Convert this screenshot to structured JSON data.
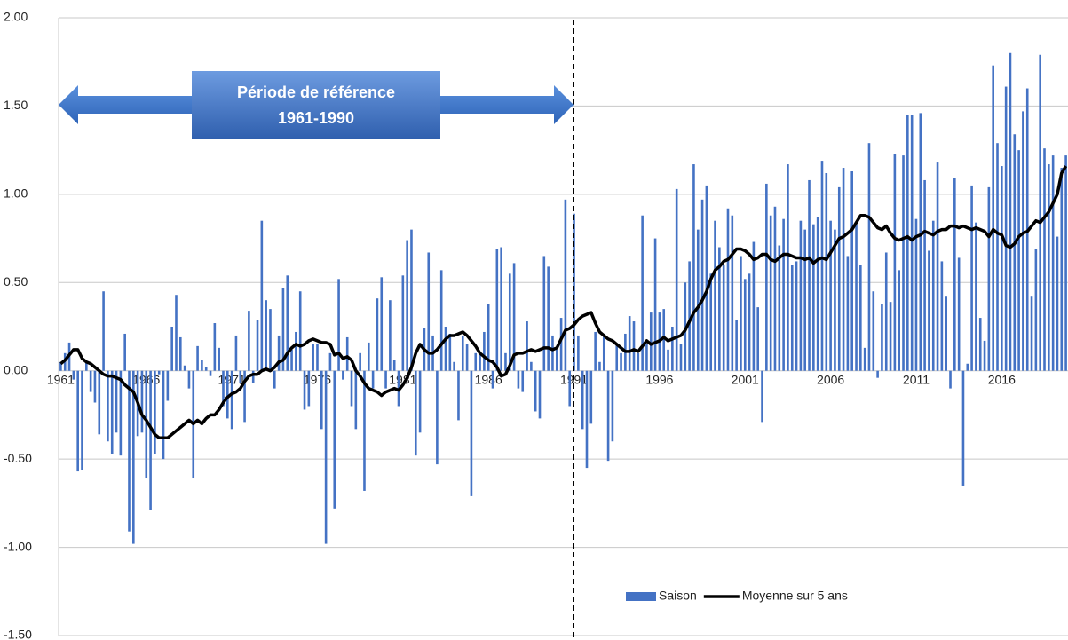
{
  "chart_data": {
    "type": "bar-line",
    "annotation": [
      "Période de référence",
      "1961-1990"
    ],
    "categories": [
      "1961",
      null,
      null,
      null,
      null,
      null,
      null,
      null,
      null,
      null,
      null,
      null,
      null,
      null,
      null,
      null,
      null,
      null,
      null,
      null,
      "1966",
      null,
      null,
      null,
      null,
      null,
      null,
      null,
      null,
      null,
      null,
      null,
      null,
      null,
      null,
      null,
      null,
      null,
      null,
      null,
      "1971",
      null,
      null,
      null,
      null,
      null,
      null,
      null,
      null,
      null,
      null,
      null,
      null,
      null,
      null,
      null,
      null,
      null,
      null,
      null,
      "1976",
      null,
      null,
      null,
      null,
      null,
      null,
      null,
      null,
      null,
      null,
      null,
      null,
      null,
      null,
      null,
      null,
      null,
      null,
      null,
      "1981",
      null,
      null,
      null,
      null,
      null,
      null,
      null,
      null,
      null,
      null,
      null,
      null,
      null,
      null,
      null,
      null,
      null,
      null,
      null,
      "1986",
      null,
      null,
      null,
      null,
      null,
      null,
      null,
      null,
      null,
      null,
      null,
      null,
      null,
      null,
      null,
      null,
      null,
      null,
      null,
      "1991",
      null,
      null,
      null,
      null,
      null,
      null,
      null,
      null,
      null,
      null,
      null,
      null,
      null,
      null,
      null,
      null,
      null,
      null,
      null,
      "1996",
      null,
      null,
      null,
      null,
      null,
      null,
      null,
      null,
      null,
      null,
      null,
      null,
      null,
      null,
      null,
      null,
      null,
      null,
      null,
      "2001",
      null,
      null,
      null,
      null,
      null,
      null,
      null,
      null,
      null,
      null,
      null,
      null,
      null,
      null,
      null,
      null,
      null,
      null,
      null,
      "2006",
      null,
      null,
      null,
      null,
      null,
      null,
      null,
      null,
      null,
      null,
      null,
      null,
      null,
      null,
      null,
      null,
      null,
      null,
      null,
      "2011",
      null,
      null,
      null,
      null,
      null,
      null,
      null,
      null,
      null,
      null,
      null,
      null,
      null,
      null,
      null,
      null,
      null,
      null,
      null,
      "2016",
      null,
      null,
      null,
      null,
      null,
      null,
      null,
      null,
      null,
      null,
      null,
      null,
      null,
      null,
      null
    ],
    "series": [
      {
        "name": "Saison",
        "type": "bar",
        "color": "#4472c4",
        "values": [
          0.05,
          0.1,
          0.16,
          -0.05,
          -0.57,
          -0.56,
          0.05,
          -0.12,
          -0.18,
          -0.36,
          0.45,
          -0.4,
          -0.47,
          -0.35,
          -0.48,
          0.21,
          -0.91,
          -0.98,
          -0.37,
          -0.35,
          -0.61,
          -0.79,
          -0.47,
          -0.02,
          -0.5,
          -0.17,
          0.25,
          0.43,
          0.19,
          0.03,
          -0.1,
          -0.61,
          0.14,
          0.06,
          0.02,
          -0.03,
          0.27,
          0.13,
          -0.2,
          -0.27,
          -0.33,
          0.2,
          -0.07,
          -0.29,
          0.34,
          -0.07,
          0.29,
          0.85,
          0.4,
          0.35,
          -0.1,
          0.2,
          0.47,
          0.54,
          0.12,
          0.22,
          0.45,
          -0.22,
          -0.2,
          0.15,
          0.15,
          -0.33,
          -0.98,
          0.1,
          -0.78,
          0.52,
          -0.05,
          0.19,
          -0.2,
          -0.33,
          0.1,
          -0.68,
          0.16,
          -0.1,
          0.41,
          0.53,
          -0.1,
          0.4,
          0.06,
          -0.2,
          0.54,
          0.74,
          0.8,
          -0.48,
          -0.35,
          0.24,
          0.67,
          0.2,
          -0.53,
          0.57,
          0.25,
          0.21,
          0.05,
          -0.28,
          0.2,
          0.15,
          -0.71,
          0.1,
          0.09,
          0.22,
          0.38,
          -0.1,
          0.69,
          0.7,
          0.1,
          0.55,
          0.61,
          -0.1,
          -0.12,
          0.28,
          0.05,
          -0.23,
          -0.27,
          0.65,
          0.59,
          0.2,
          0.12,
          0.3,
          0.97,
          -0.2,
          0.89,
          0.2,
          -0.33,
          -0.55,
          -0.3,
          0.22,
          0.05,
          0.2,
          -0.51,
          -0.4,
          0.15,
          0.1,
          0.21,
          0.31,
          0.28,
          0.1,
          0.88,
          0.15,
          0.33,
          0.75,
          0.33,
          0.35,
          0.12,
          0.25,
          1.03,
          0.15,
          0.5,
          0.62,
          1.17,
          0.8,
          0.97,
          1.05,
          0.55,
          0.85,
          0.7,
          0.6,
          0.92,
          0.88,
          0.29,
          0.65,
          0.52,
          0.55,
          0.73,
          0.36,
          -0.29,
          1.06,
          0.88,
          0.93,
          0.71,
          0.86,
          1.17,
          0.6,
          0.62,
          0.85,
          0.8,
          1.08,
          0.83,
          0.87,
          1.19,
          1.12,
          0.85,
          0.8,
          1.04,
          1.15,
          0.65,
          1.13,
          0.83,
          0.6,
          0.13,
          1.29,
          0.45,
          -0.04,
          0.38,
          0.67,
          0.39,
          1.23,
          0.57,
          1.22,
          1.45,
          1.45,
          0.86,
          1.46,
          1.08,
          0.68,
          0.85,
          1.18,
          0.62,
          0.42,
          -0.1,
          1.09,
          0.64,
          -0.65,
          0.04,
          1.05,
          0.84,
          0.3,
          0.17,
          1.04,
          1.73,
          1.29,
          1.16,
          1.61,
          1.8,
          1.34,
          1.25,
          1.47,
          1.6,
          0.42,
          0.69,
          1.79,
          1.26,
          1.17,
          1.22,
          0.76,
          1.15,
          1.22
        ]
      },
      {
        "name": "Moyenne sur 5 ans",
        "type": "line",
        "color": "#000000",
        "values": [
          0.04,
          0.06,
          0.09,
          0.12,
          0.12,
          0.07,
          0.05,
          0.04,
          0.02,
          0.0,
          -0.02,
          -0.03,
          -0.03,
          -0.04,
          -0.05,
          -0.08,
          -0.1,
          -0.12,
          -0.18,
          -0.25,
          -0.28,
          -0.32,
          -0.36,
          -0.38,
          -0.38,
          -0.38,
          -0.36,
          -0.34,
          -0.32,
          -0.3,
          -0.28,
          -0.3,
          -0.28,
          -0.3,
          -0.27,
          -0.25,
          -0.25,
          -0.22,
          -0.18,
          -0.15,
          -0.13,
          -0.12,
          -0.1,
          -0.06,
          -0.03,
          -0.02,
          -0.02,
          0.0,
          0.01,
          0.0,
          0.02,
          0.05,
          0.06,
          0.1,
          0.13,
          0.15,
          0.14,
          0.15,
          0.17,
          0.18,
          0.17,
          0.16,
          0.16,
          0.15,
          0.09,
          0.1,
          0.07,
          0.08,
          0.06,
          0.0,
          -0.03,
          -0.07,
          -0.1,
          -0.11,
          -0.12,
          -0.14,
          -0.12,
          -0.11,
          -0.1,
          -0.11,
          -0.08,
          -0.04,
          0.02,
          0.1,
          0.15,
          0.12,
          0.1,
          0.1,
          0.12,
          0.15,
          0.18,
          0.2,
          0.2,
          0.21,
          0.22,
          0.2,
          0.17,
          0.14,
          0.1,
          0.08,
          0.06,
          0.05,
          0.02,
          -0.03,
          -0.02,
          0.03,
          0.09,
          0.1,
          0.1,
          0.11,
          0.12,
          0.11,
          0.12,
          0.13,
          0.13,
          0.12,
          0.13,
          0.18,
          0.23,
          0.24,
          0.26,
          0.29,
          0.31,
          0.32,
          0.33,
          0.27,
          0.22,
          0.2,
          0.18,
          0.17,
          0.15,
          0.13,
          0.11,
          0.11,
          0.12,
          0.11,
          0.14,
          0.17,
          0.15,
          0.16,
          0.17,
          0.19,
          0.17,
          0.18,
          0.19,
          0.2,
          0.23,
          0.28,
          0.33,
          0.36,
          0.4,
          0.45,
          0.52,
          0.57,
          0.59,
          0.62,
          0.63,
          0.66,
          0.69,
          0.69,
          0.68,
          0.66,
          0.63,
          0.64,
          0.66,
          0.66,
          0.63,
          0.62,
          0.64,
          0.66,
          0.66,
          0.65,
          0.64,
          0.64,
          0.63,
          0.64,
          0.61,
          0.63,
          0.64,
          0.63,
          0.67,
          0.71,
          0.75,
          0.76,
          0.78,
          0.8,
          0.84,
          0.88,
          0.88,
          0.87,
          0.84,
          0.81,
          0.8,
          0.82,
          0.78,
          0.75,
          0.74,
          0.75,
          0.76,
          0.74,
          0.76,
          0.77,
          0.79,
          0.78,
          0.77,
          0.79,
          0.8,
          0.8,
          0.82,
          0.82,
          0.81,
          0.82,
          0.81,
          0.8,
          0.81,
          0.8,
          0.79,
          0.76,
          0.8,
          0.78,
          0.77,
          0.71,
          0.7,
          0.72,
          0.76,
          0.78,
          0.79,
          0.82,
          0.85,
          0.84,
          0.87,
          0.9,
          0.95,
          1.0,
          1.12,
          1.16
        ]
      }
    ],
    "ylim": [
      -1.5,
      2.0
    ],
    "yticks": [
      {
        "value": -1.5,
        "label": "-1.50"
      },
      {
        "value": -1.0,
        "label": "-1.00"
      },
      {
        "value": -0.5,
        "label": "-0.50"
      },
      {
        "value": 0,
        "label": "0.00"
      },
      {
        "value": 0.5,
        "label": "0.50"
      },
      {
        "value": 1.0,
        "label": "1.00"
      },
      {
        "value": 1.5,
        "label": "1.50"
      },
      {
        "value": 2.0,
        "label": "2.00"
      }
    ],
    "grid": true,
    "legend": "bottom-right"
  }
}
